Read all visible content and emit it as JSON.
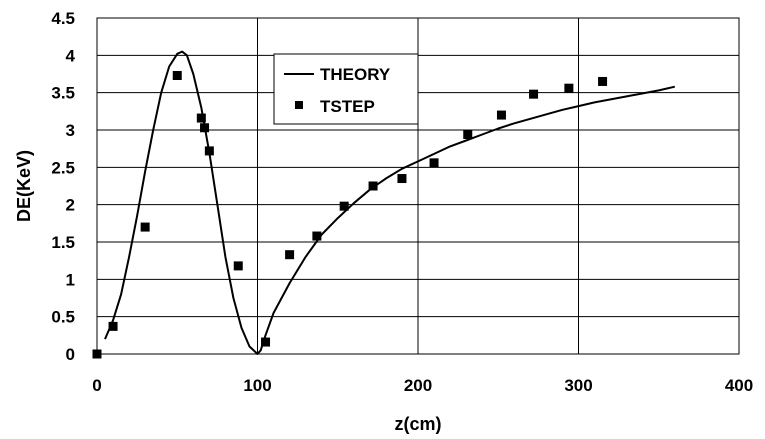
{
  "chart_data": {
    "type": "scatter",
    "title": "",
    "xlabel": "z(cm)",
    "ylabel": "DE(KeV)",
    "xlim": [
      0,
      400
    ],
    "ylim": [
      0,
      4.5
    ],
    "xticks": [
      0,
      100,
      200,
      300,
      400
    ],
    "yticks": [
      0,
      0.5,
      1,
      1.5,
      2,
      2.5,
      3,
      3.5,
      4,
      4.5
    ],
    "xtick_labels": [
      "0",
      "100",
      "200",
      "300",
      "400"
    ],
    "ytick_labels": [
      "0",
      "0.5",
      "1",
      "1.5",
      "2",
      "2.5",
      "3",
      "3.5",
      "4",
      "4.5"
    ],
    "grid": "vertical and horizontal major gridlines",
    "legend_position": "top-center",
    "series": [
      {
        "name": "THEORY",
        "kind": "line",
        "color": "#000000",
        "x": [
          5,
          10,
          15,
          20,
          25,
          30,
          35,
          40,
          45,
          50,
          53,
          56,
          60,
          65,
          70,
          75,
          80,
          85,
          90,
          95,
          100,
          102,
          105,
          110,
          120,
          130,
          140,
          150,
          160,
          170,
          180,
          190,
          200,
          210,
          220,
          230,
          240,
          250,
          260,
          270,
          280,
          290,
          300,
          310,
          320,
          330,
          340,
          350,
          360
        ],
        "y": [
          0.2,
          0.45,
          0.8,
          1.3,
          1.85,
          2.45,
          3.0,
          3.5,
          3.85,
          4.02,
          4.05,
          4.0,
          3.75,
          3.3,
          2.7,
          2.0,
          1.3,
          0.75,
          0.35,
          0.1,
          0.0,
          0.05,
          0.25,
          0.55,
          0.95,
          1.3,
          1.6,
          1.82,
          2.02,
          2.2,
          2.35,
          2.48,
          2.58,
          2.68,
          2.78,
          2.86,
          2.94,
          3.02,
          3.09,
          3.15,
          3.21,
          3.27,
          3.32,
          3.37,
          3.41,
          3.45,
          3.49,
          3.53,
          3.58
        ]
      },
      {
        "name": "TSTEP",
        "kind": "scatter",
        "marker": "square",
        "color": "#000000",
        "x": [
          0,
          10,
          30,
          50,
          65,
          67,
          70,
          88,
          105,
          120,
          137,
          154,
          172,
          190,
          210,
          231,
          252,
          272,
          294,
          315
        ],
        "y": [
          0.0,
          0.37,
          1.7,
          3.73,
          3.16,
          3.03,
          2.72,
          1.18,
          0.16,
          1.33,
          1.58,
          1.98,
          2.25,
          2.35,
          2.56,
          2.94,
          3.2,
          3.48,
          3.56,
          3.65
        ]
      }
    ]
  }
}
